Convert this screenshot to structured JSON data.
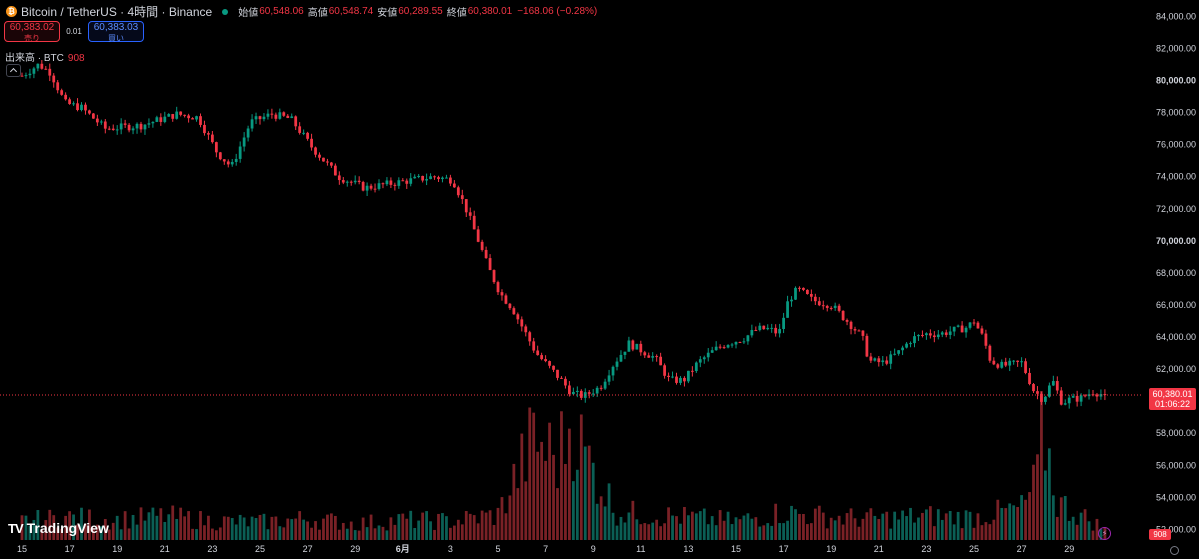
{
  "header": {
    "title": "Bitcoin / TetherUS · 4時間 · Binance",
    "ohlc": [
      {
        "label": "始値",
        "value": "60,548.06"
      },
      {
        "label": "高値",
        "value": "60,548.74"
      },
      {
        "label": "安値",
        "value": "60,289.55"
      },
      {
        "label": "終値",
        "value": "60,380.01"
      }
    ],
    "change": "−168.06 (−0.28%)"
  },
  "trade": {
    "sell_price": "60,383.02",
    "sell_label": "売り",
    "spread": "0.01",
    "buy_price": "60,383.03",
    "buy_label": "買い"
  },
  "volume_indicator": {
    "label": "出来高 · BTC",
    "value": "908"
  },
  "brand": "TradingView",
  "last_price": {
    "price": "60,380.01",
    "countdown": "01:06:22"
  },
  "last_volume": "908",
  "colors": {
    "up": "#089981",
    "down": "#f23645",
    "up_volume": "#0b5f55",
    "down_volume": "#7a2126"
  },
  "icons": [
    "btc-icon",
    "market-status-icon",
    "collapse-chevron-icon",
    "tradingview-logo-icon",
    "bolt-icon",
    "gear-icon"
  ],
  "chart_data": {
    "type": "candlestick",
    "y_axis_labels": [
      "84,000.00",
      "82,000.00",
      "80,000.00",
      "78,000.00",
      "76,000.00",
      "74,000.00",
      "72,000.00",
      "70,000.00",
      "68,000.00",
      "66,000.00",
      "64,000.00",
      "62,000.00",
      "58,000.00",
      "56,000.00",
      "54,000.00",
      "52,000.00"
    ],
    "y_major_labels": [
      "80,000.00",
      "70,000.00"
    ],
    "ylim": [
      51900,
      84400
    ],
    "x_axis_labels": [
      "15",
      "17",
      "19",
      "21",
      "23",
      "25",
      "27",
      "29",
      "6月",
      "3",
      "5",
      "7",
      "9",
      "11",
      "13",
      "15",
      "17",
      "19",
      "21",
      "23",
      "25",
      "27",
      "29"
    ],
    "x_axis_bold": "6月",
    "grid": false,
    "price_anchors_day_offset_close": [
      [
        0,
        80300
      ],
      [
        0.7,
        81000
      ],
      [
        1.2,
        80500
      ],
      [
        1.8,
        78600
      ],
      [
        2.5,
        78300
      ],
      [
        3.5,
        77000
      ],
      [
        5,
        77200
      ],
      [
        6.5,
        77900
      ],
      [
        7.4,
        77700
      ],
      [
        8.2,
        75500
      ],
      [
        8.8,
        74600
      ],
      [
        9.6,
        77400
      ],
      [
        10.5,
        77900
      ],
      [
        11.3,
        77600
      ],
      [
        12.2,
        75800
      ],
      [
        13.3,
        74000
      ],
      [
        14.4,
        73300
      ],
      [
        16,
        73700
      ],
      [
        17.3,
        74000
      ],
      [
        18.1,
        73800
      ],
      [
        18.6,
        72200
      ],
      [
        19.1,
        70300
      ],
      [
        19.6,
        68300
      ],
      [
        20.1,
        66700
      ],
      [
        20.6,
        65800
      ],
      [
        21.1,
        64400
      ],
      [
        21.6,
        63000
      ],
      [
        22.1,
        62200
      ],
      [
        22.6,
        61400
      ],
      [
        23.1,
        60500
      ],
      [
        23.6,
        60300
      ],
      [
        24.3,
        60900
      ],
      [
        24.8,
        62200
      ],
      [
        25.5,
        63600
      ],
      [
        26.1,
        63100
      ],
      [
        26.6,
        62700
      ],
      [
        27.2,
        61300
      ],
      [
        27.8,
        61300
      ],
      [
        28.4,
        62400
      ],
      [
        29.1,
        63200
      ],
      [
        29.6,
        63600
      ],
      [
        30.3,
        63900
      ],
      [
        30.9,
        64500
      ],
      [
        31.4,
        64500
      ],
      [
        31.8,
        64200
      ],
      [
        32.2,
        66300
      ],
      [
        32.6,
        67000
      ],
      [
        33.2,
        66300
      ],
      [
        34,
        66000
      ],
      [
        34.8,
        64800
      ],
      [
        35.3,
        64000
      ],
      [
        35.6,
        62500
      ],
      [
        36.2,
        62400
      ],
      [
        36.8,
        63000
      ],
      [
        37.4,
        63900
      ],
      [
        38,
        64200
      ],
      [
        38.6,
        64200
      ],
      [
        39.1,
        64400
      ],
      [
        39.7,
        64600
      ],
      [
        40,
        65000
      ],
      [
        40.4,
        63900
      ],
      [
        40.7,
        62500
      ],
      [
        41.2,
        62200
      ],
      [
        42,
        62400
      ],
      [
        42.5,
        60700
      ],
      [
        42.9,
        60100
      ],
      [
        43.3,
        61300
      ],
      [
        43.7,
        59900
      ],
      [
        44,
        60100
      ],
      [
        44.5,
        60200
      ],
      [
        45,
        60600
      ],
      [
        45.5,
        60380
      ]
    ],
    "volume_ylim_btc": [
      0,
      10000
    ],
    "volume_series_btc_day_offset": [
      [
        0,
        1500
      ],
      [
        2,
        1800
      ],
      [
        4,
        1600
      ],
      [
        6,
        1900
      ],
      [
        8,
        1500
      ],
      [
        10,
        1400
      ],
      [
        12,
        1700
      ],
      [
        14,
        1300
      ],
      [
        16,
        1600
      ],
      [
        18,
        1500
      ],
      [
        20,
        2000
      ],
      [
        21.5,
        8000
      ],
      [
        22.5,
        6500
      ],
      [
        23.1,
        9500
      ],
      [
        23.6,
        7000
      ],
      [
        25,
        2200
      ],
      [
        28,
        1800
      ],
      [
        30,
        1500
      ],
      [
        32,
        2200
      ],
      [
        34,
        1800
      ],
      [
        36,
        1700
      ],
      [
        38,
        1900
      ],
      [
        40,
        1800
      ],
      [
        42,
        2500
      ],
      [
        42.6,
        4500
      ],
      [
        42.9,
        9000
      ],
      [
        43.5,
        3000
      ],
      [
        45.5,
        908
      ]
    ],
    "last_close": 60380.01,
    "last_volume": 908
  }
}
